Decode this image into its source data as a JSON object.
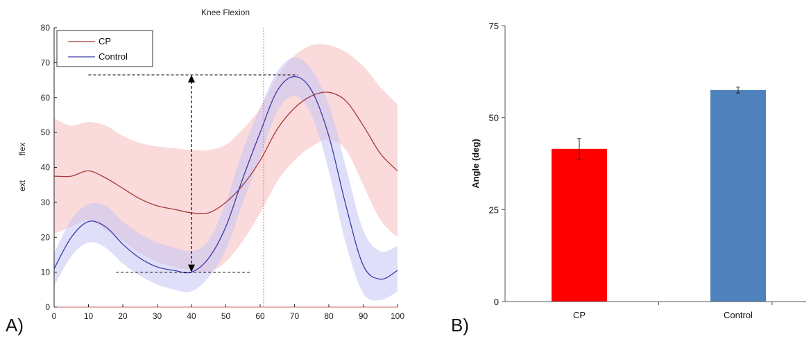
{
  "panel_labels": {
    "a": "A)",
    "b": "B)"
  },
  "chart_data": [
    {
      "type": "line",
      "title": "Knee Flexion",
      "xlabel": "",
      "ylabel_upper": "flex",
      "ylabel_lower": "ext",
      "xlim": [
        0,
        100
      ],
      "ylim": [
        0,
        80
      ],
      "xticks": [
        0,
        10,
        20,
        30,
        40,
        50,
        60,
        70,
        80,
        90,
        100
      ],
      "yticks": [
        0,
        10,
        20,
        30,
        40,
        50,
        60,
        70,
        80
      ],
      "legend_position": "top-left",
      "vertical_marker_x": 61,
      "x": [
        0,
        5,
        10,
        15,
        20,
        25,
        30,
        35,
        40,
        45,
        50,
        55,
        60,
        65,
        70,
        75,
        80,
        85,
        90,
        95,
        100
      ],
      "series": [
        {
          "name": "CP",
          "color": "#a33a3a",
          "band_color": "#f6c2c2",
          "values": [
            37.5,
            37.5,
            39,
            37,
            34,
            31,
            29,
            28,
            27,
            27,
            30,
            35,
            42,
            51,
            57,
            60.5,
            61.5,
            59,
            52,
            44,
            39
          ],
          "upper": [
            54,
            52,
            53,
            52,
            49,
            47,
            46,
            45.5,
            45,
            45,
            46.5,
            51,
            57,
            66,
            72,
            75,
            75,
            73,
            69,
            63,
            58
          ],
          "lower": [
            21,
            23,
            25,
            22,
            19,
            15.5,
            13,
            11.5,
            10.5,
            10,
            13,
            19,
            27,
            36,
            42,
            46,
            48,
            45,
            35,
            25,
            20
          ]
        },
        {
          "name": "Control",
          "color": "#3a3aa5",
          "band_color": "#c4c4f5",
          "values": [
            11,
            20,
            24.5,
            23,
            18,
            14,
            11.5,
            10.5,
            10,
            14,
            23,
            37,
            50,
            62,
            66,
            62,
            49,
            29,
            12,
            8,
            10.5
          ],
          "upper": [
            15.5,
            25,
            29.5,
            29,
            24.5,
            21,
            18.5,
            17,
            16,
            19,
            30,
            45,
            57,
            67.5,
            71.5,
            68,
            58,
            40,
            22,
            16,
            17.5
          ],
          "lower": [
            6,
            14.5,
            18.5,
            17,
            12.5,
            9,
            6.5,
            5,
            4.5,
            8.5,
            16.5,
            30,
            43,
            56,
            60.5,
            55,
            39,
            18,
            4,
            2,
            4.5
          ]
        }
      ],
      "range_annotation": {
        "x": 40,
        "y_low": 10,
        "y_high": 66.5,
        "top_line_x": [
          10,
          71
        ],
        "bottom_line_x": [
          18,
          57
        ]
      }
    },
    {
      "type": "bar",
      "title": "",
      "xlabel": "",
      "ylabel": "Angle (deg)",
      "ylim": [
        0,
        75
      ],
      "yticks": [
        0,
        25,
        50,
        75
      ],
      "categories": [
        "CP",
        "Control"
      ],
      "values": [
        41.5,
        57.5
      ],
      "errors": [
        2.8,
        0.8
      ],
      "colors": [
        "#ff0000",
        "#4f81bd"
      ]
    }
  ]
}
